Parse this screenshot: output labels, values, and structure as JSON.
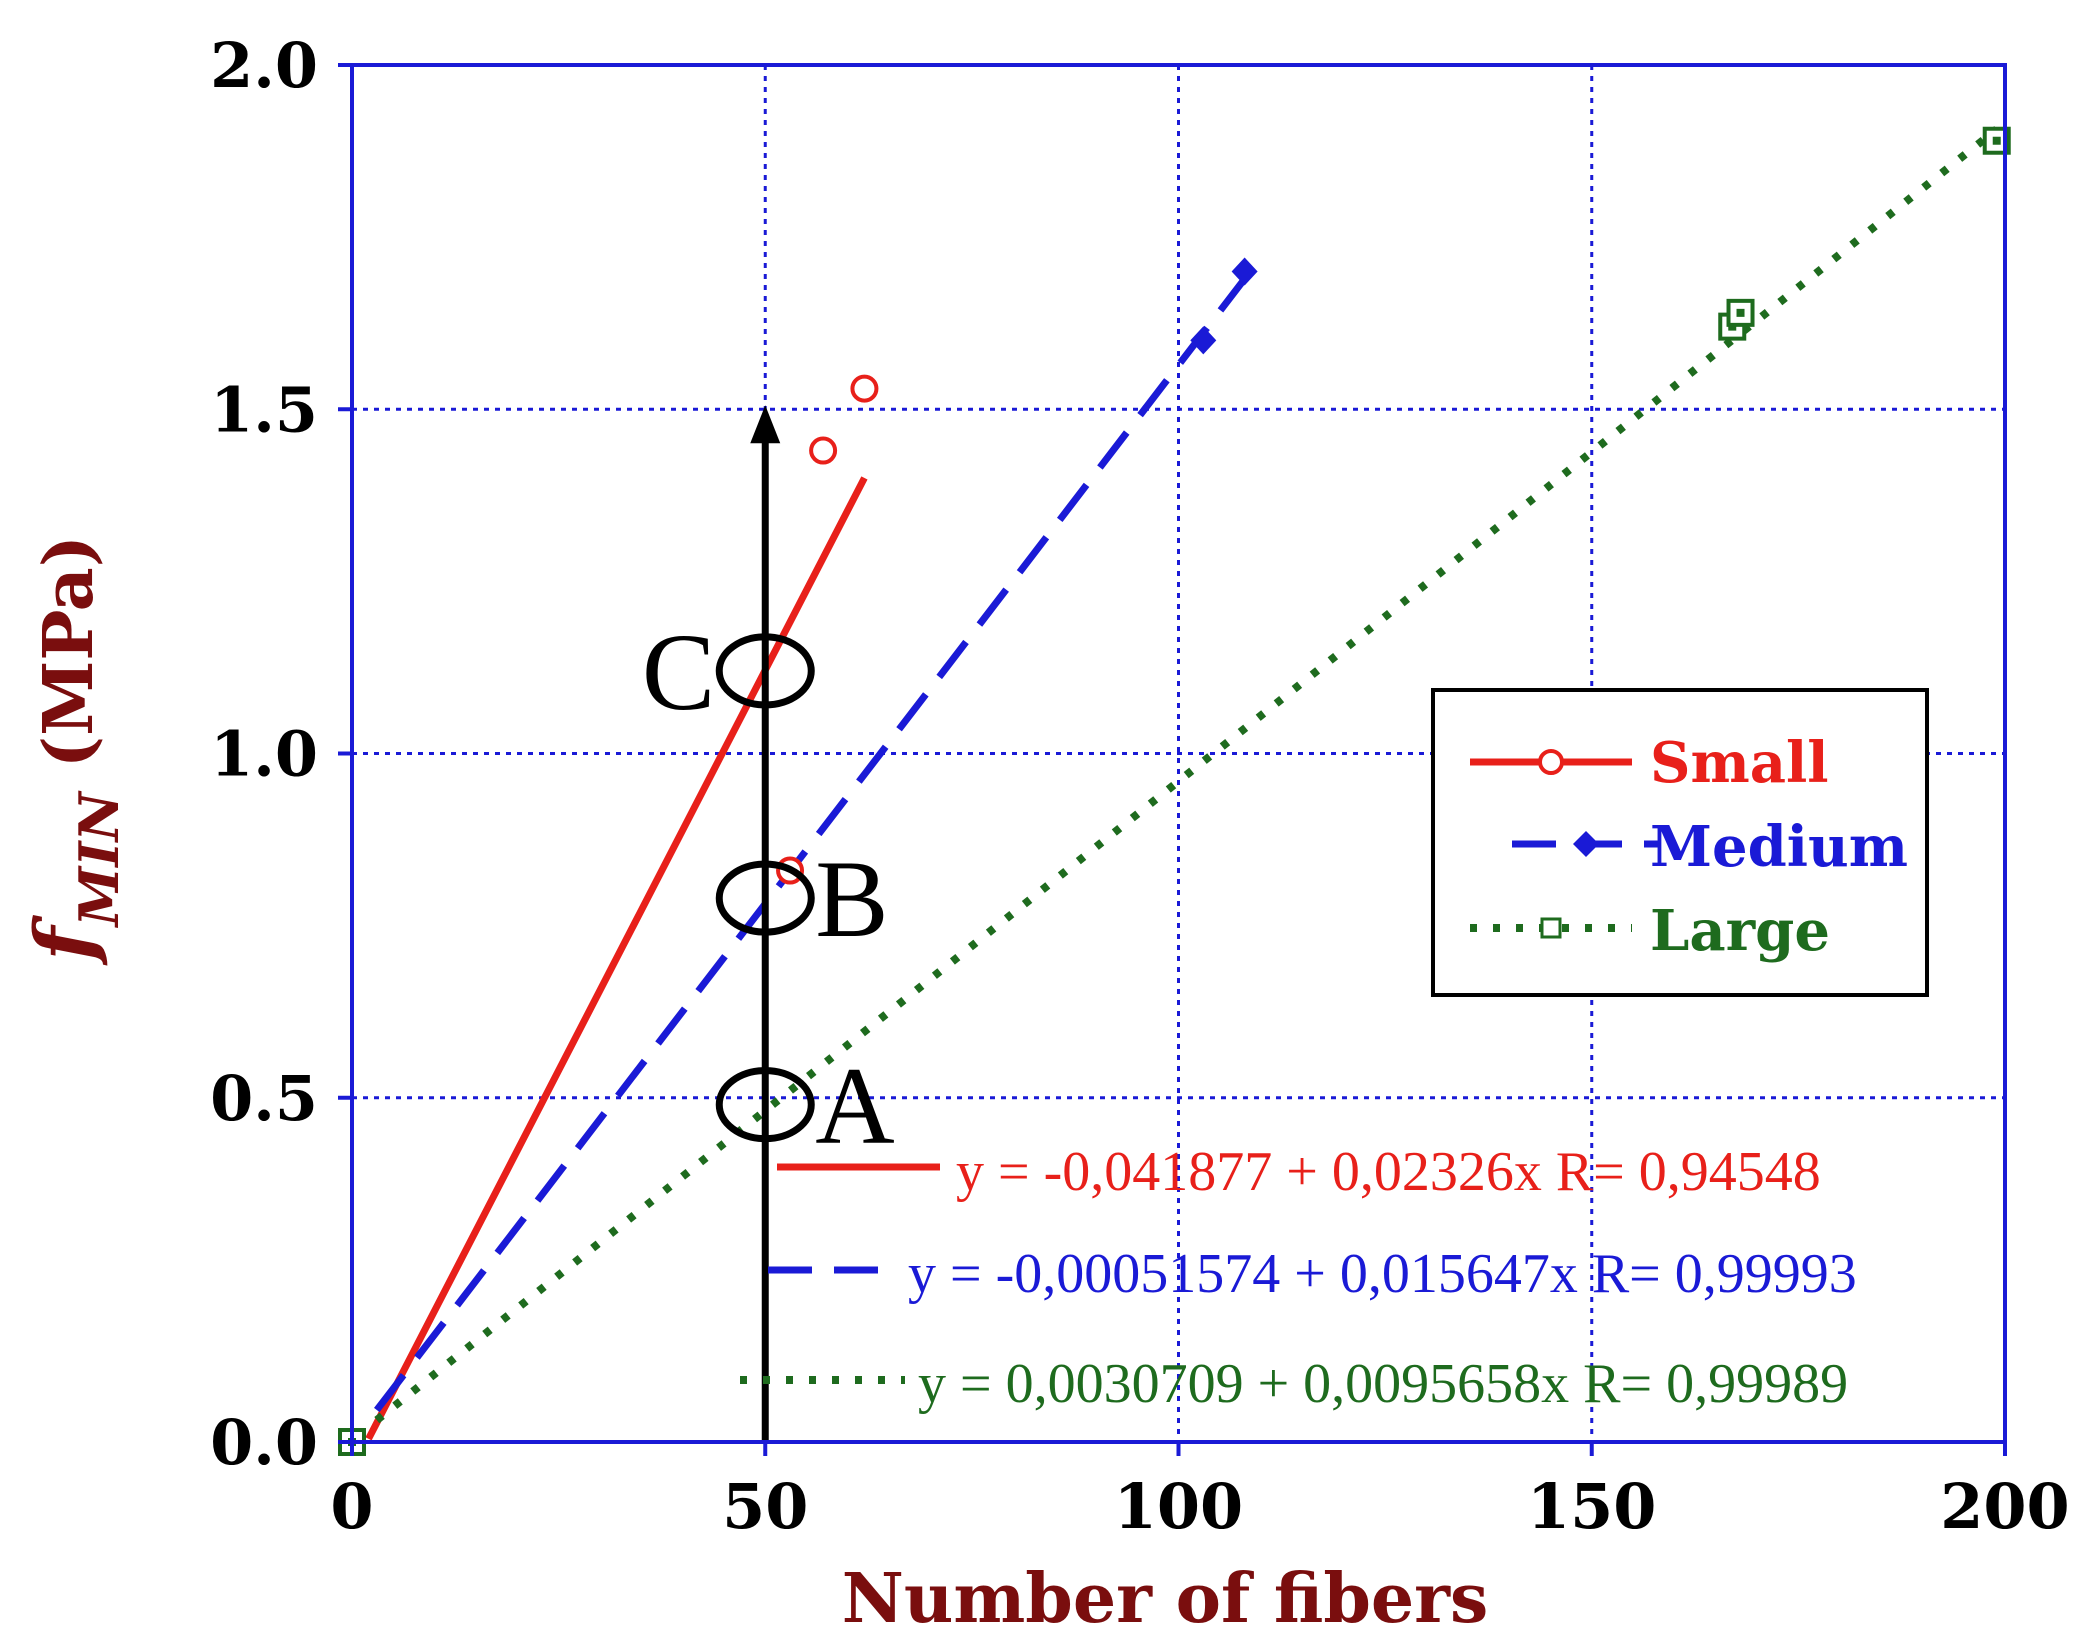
{
  "chart_data": {
    "type": "scatter",
    "xlabel": "Number of fibers",
    "ylabel_main": "f",
    "ylabel_sub": "MIN",
    "ylabel_unit": "(MPa)",
    "xlim": [
      0,
      200
    ],
    "ylim": [
      0,
      2.0
    ],
    "x_ticks": [
      0,
      50,
      100,
      150,
      200
    ],
    "x_tick_labels": [
      "0",
      "50",
      "100",
      "150",
      "200"
    ],
    "y_ticks": [
      0,
      0.5,
      1.0,
      1.5,
      2.0
    ],
    "y_tick_labels": [
      "0.0",
      "0.5",
      "1.0",
      "1.5",
      "2.0"
    ],
    "grid": true,
    "legend_position": "right-middle",
    "series": [
      {
        "name": "Small",
        "color": "#e8201a",
        "line_style": "solid",
        "marker": "open-circle",
        "x": [
          0,
          53,
          57,
          62
        ],
        "y": [
          0,
          0.83,
          1.44,
          1.53
        ],
        "fit_x_range": [
          2,
          62
        ],
        "fit_intercept": -0.041877,
        "fit_slope": 0.02326,
        "equation": "y = -0,041877 + 0,02326x   R= 0,94548"
      },
      {
        "name": "Medium",
        "color": "#1a1ad6",
        "line_style": "dashed",
        "marker": "filled-diamond",
        "x": [
          0,
          103,
          108
        ],
        "y": [
          0,
          1.6,
          1.7
        ],
        "fit_x_range": [
          3,
          108
        ],
        "fit_intercept": -0.00051574,
        "fit_slope": 0.015647,
        "equation": "y = -0,00051574 + 0,015647x   R= 0,99993"
      },
      {
        "name": "Large",
        "color": "#1e6b1e",
        "line_style": "dotted",
        "marker": "open-square",
        "x": [
          0,
          167,
          168,
          199
        ],
        "y": [
          0,
          1.62,
          1.64,
          1.89
        ],
        "fit_x_range": [
          3,
          199
        ],
        "fit_intercept": 0.0030709,
        "fit_slope": 0.0095658,
        "equation": "y = 0,0030709 + 0,0095658x   R= 0,99989"
      }
    ],
    "annotations": {
      "arrow": {
        "x": 50,
        "y_from": 0,
        "y_to": 1.5
      },
      "points": [
        {
          "label": "A",
          "x": 50,
          "y": 0.49,
          "label_side": "right"
        },
        {
          "label": "B",
          "x": 50,
          "y": 0.79,
          "label_side": "right"
        },
        {
          "label": "C",
          "x": 50,
          "y": 1.12,
          "label_side": "left"
        }
      ]
    },
    "colors": {
      "axis": "#1a1ad6",
      "grid": "#1a1ad6",
      "axis_title": "#7a0e0e",
      "arrow": "#000000"
    }
  }
}
